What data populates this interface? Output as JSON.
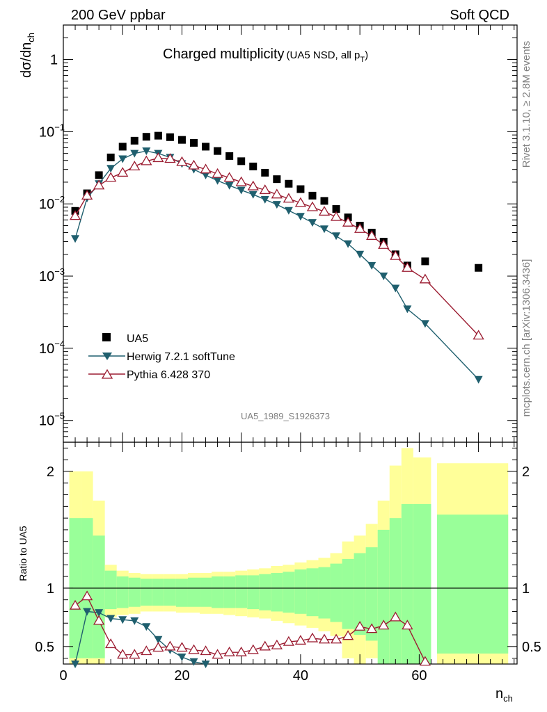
{
  "header": {
    "left": "200 GeV ppbar",
    "right": "Soft QCD"
  },
  "side_labels": {
    "top": "Rivet 3.1.10, ≥ 2.8M events",
    "bottom": "mcplots.cern.ch [arXiv:1306.3436]"
  },
  "watermark": "UA5_1989_S1926373",
  "colors": {
    "data": "#000000",
    "herwig": "#1f5f6e",
    "pythia": "#9b1b30",
    "band_outer": "#ffff99",
    "band_inner": "#99ff99"
  },
  "chart_data": [
    {
      "type": "scatter",
      "scale": "log",
      "title": "Charged multiplicity",
      "title_suffix": "(UA5 NSD, all p",
      "title_sub": "T",
      "title_close": ")",
      "ylabel_main": "dσ/dn",
      "ylabel_sub": "ch",
      "xlim": [
        0,
        76.5
      ],
      "ylim": [
        5e-06,
        3
      ],
      "yticks": [
        {
          "value": 1e-05,
          "label": "10",
          "exp": "−5"
        },
        {
          "value": 0.0001,
          "label": "10",
          "exp": "−4"
        },
        {
          "value": 0.001,
          "label": "10",
          "exp": "−3"
        },
        {
          "value": 0.01,
          "label": "10",
          "exp": "−2"
        },
        {
          "value": 0.1,
          "label": "10",
          "exp": "−1"
        },
        {
          "value": 1,
          "label": "1",
          "exp": ""
        }
      ],
      "legend": [
        "UA5",
        "Herwig 7.2.1 softTune",
        "Pythia 6.428 370"
      ],
      "series": [
        {
          "name": "UA5",
          "marker": "square",
          "x": [
            2,
            4,
            6,
            8,
            10,
            12,
            14,
            16,
            18,
            20,
            22,
            24,
            26,
            28,
            30,
            32,
            34,
            36,
            38,
            40,
            42,
            44,
            46,
            48,
            50,
            52,
            54,
            56,
            58,
            61,
            70
          ],
          "values": [
            0.008,
            0.014,
            0.025,
            0.044,
            0.062,
            0.075,
            0.085,
            0.088,
            0.084,
            0.077,
            0.07,
            0.062,
            0.054,
            0.046,
            0.039,
            0.033,
            0.027,
            0.022,
            0.019,
            0.016,
            0.013,
            0.011,
            0.0085,
            0.0065,
            0.005,
            0.004,
            0.003,
            0.002,
            0.0014,
            0.0016,
            0.0013
          ]
        },
        {
          "name": "Herwig 7.2.1 softTune",
          "marker": "triangle-down",
          "x": [
            2,
            4,
            6,
            8,
            10,
            12,
            14,
            16,
            18,
            20,
            22,
            24,
            26,
            28,
            30,
            32,
            34,
            36,
            38,
            40,
            42,
            44,
            46,
            48,
            50,
            52,
            54,
            56,
            58,
            61,
            70
          ],
          "values": [
            0.0033,
            0.012,
            0.019,
            0.031,
            0.042,
            0.05,
            0.054,
            0.05,
            0.044,
            0.036,
            0.03,
            0.025,
            0.021,
            0.018,
            0.0155,
            0.0135,
            0.0115,
            0.0098,
            0.0081,
            0.0067,
            0.0055,
            0.0045,
            0.0036,
            0.0028,
            0.002,
            0.0014,
            0.001,
            0.00068,
            0.00035,
            0.00022,
            3.7e-05
          ]
        },
        {
          "name": "Pythia 6.428 370",
          "marker": "triangle-up",
          "x": [
            2,
            4,
            6,
            8,
            10,
            12,
            14,
            16,
            18,
            20,
            22,
            24,
            26,
            28,
            30,
            32,
            34,
            36,
            38,
            40,
            42,
            44,
            46,
            48,
            50,
            52,
            54,
            56,
            58,
            61,
            70
          ],
          "values": [
            0.0068,
            0.013,
            0.018,
            0.023,
            0.027,
            0.033,
            0.039,
            0.043,
            0.042,
            0.038,
            0.034,
            0.03,
            0.026,
            0.023,
            0.02,
            0.0175,
            0.0155,
            0.0135,
            0.0118,
            0.0103,
            0.009,
            0.0078,
            0.0066,
            0.0055,
            0.0045,
            0.0036,
            0.0027,
            0.0019,
            0.0013,
            0.0009,
            0.00015
          ]
        }
      ]
    },
    {
      "type": "line",
      "ylabel": "Ratio to UA5",
      "xlabel_main": "n",
      "xlabel_sub": "ch",
      "xlim": [
        0,
        76.5
      ],
      "ylim": [
        0.35,
        2.25
      ],
      "xticks": [
        0,
        20,
        40,
        60
      ],
      "yticks": [
        0.5,
        1,
        2
      ],
      "ytick_labels": [
        "0.5",
        "1",
        "2"
      ],
      "bands": [
        {
          "x0": 1,
          "x1": 3,
          "outer": [
            0.3,
            2.0
          ],
          "inner": [
            0.4,
            1.6
          ]
        },
        {
          "x0": 3,
          "x1": 5,
          "outer": [
            0.3,
            2.0
          ],
          "inner": [
            0.4,
            1.6
          ]
        },
        {
          "x0": 5,
          "x1": 7,
          "outer": [
            0.3,
            1.75
          ],
          "inner": [
            0.4,
            1.45
          ]
        },
        {
          "x0": 7,
          "x1": 9,
          "outer": [
            0.75,
            1.2
          ],
          "inner": [
            0.82,
            1.15
          ]
        },
        {
          "x0": 9,
          "x1": 11,
          "outer": [
            0.77,
            1.15
          ],
          "inner": [
            0.83,
            1.1
          ]
        },
        {
          "x0": 11,
          "x1": 13,
          "outer": [
            0.78,
            1.13
          ],
          "inner": [
            0.84,
            1.09
          ]
        },
        {
          "x0": 13,
          "x1": 15,
          "outer": [
            0.8,
            1.12
          ],
          "inner": [
            0.85,
            1.08
          ]
        },
        {
          "x0": 15,
          "x1": 17,
          "outer": [
            0.8,
            1.12
          ],
          "inner": [
            0.85,
            1.08
          ]
        },
        {
          "x0": 17,
          "x1": 19,
          "outer": [
            0.8,
            1.12
          ],
          "inner": [
            0.85,
            1.08
          ]
        },
        {
          "x0": 19,
          "x1": 21,
          "outer": [
            0.79,
            1.12
          ],
          "inner": [
            0.84,
            1.08
          ]
        },
        {
          "x0": 21,
          "x1": 23,
          "outer": [
            0.79,
            1.13
          ],
          "inner": [
            0.84,
            1.09
          ]
        },
        {
          "x0": 23,
          "x1": 25,
          "outer": [
            0.78,
            1.13
          ],
          "inner": [
            0.84,
            1.09
          ]
        },
        {
          "x0": 25,
          "x1": 27,
          "outer": [
            0.78,
            1.14
          ],
          "inner": [
            0.83,
            1.1
          ]
        },
        {
          "x0": 27,
          "x1": 29,
          "outer": [
            0.77,
            1.14
          ],
          "inner": [
            0.83,
            1.1
          ]
        },
        {
          "x0": 29,
          "x1": 31,
          "outer": [
            0.76,
            1.15
          ],
          "inner": [
            0.83,
            1.11
          ]
        },
        {
          "x0": 31,
          "x1": 33,
          "outer": [
            0.75,
            1.16
          ],
          "inner": [
            0.82,
            1.11
          ]
        },
        {
          "x0": 33,
          "x1": 35,
          "outer": [
            0.74,
            1.17
          ],
          "inner": [
            0.81,
            1.12
          ]
        },
        {
          "x0": 35,
          "x1": 37,
          "outer": [
            0.72,
            1.19
          ],
          "inner": [
            0.8,
            1.13
          ]
        },
        {
          "x0": 37,
          "x1": 39,
          "outer": [
            0.7,
            1.2
          ],
          "inner": [
            0.79,
            1.14
          ]
        },
        {
          "x0": 39,
          "x1": 41,
          "outer": [
            0.68,
            1.22
          ],
          "inner": [
            0.78,
            1.16
          ]
        },
        {
          "x0": 41,
          "x1": 43,
          "outer": [
            0.66,
            1.24
          ],
          "inner": [
            0.76,
            1.17
          ]
        },
        {
          "x0": 43,
          "x1": 45,
          "outer": [
            0.63,
            1.26
          ],
          "inner": [
            0.74,
            1.18
          ]
        },
        {
          "x0": 45,
          "x1": 47,
          "outer": [
            0.59,
            1.3
          ],
          "inner": [
            0.71,
            1.21
          ]
        },
        {
          "x0": 47,
          "x1": 49,
          "outer": [
            0.4,
            1.4
          ],
          "inner": [
            0.65,
            1.25
          ]
        },
        {
          "x0": 49,
          "x1": 51,
          "outer": [
            0.35,
            1.45
          ],
          "inner": [
            0.6,
            1.3
          ]
        },
        {
          "x0": 51,
          "x1": 53,
          "outer": [
            0.4,
            1.55
          ],
          "inner": [
            0.55,
            1.35
          ]
        },
        {
          "x0": 53,
          "x1": 55,
          "outer": [
            0.3,
            1.75
          ],
          "inner": [
            0.35,
            1.5
          ]
        },
        {
          "x0": 55,
          "x1": 57,
          "outer": [
            0.3,
            2.05
          ],
          "inner": [
            0.35,
            1.6
          ]
        },
        {
          "x0": 57,
          "x1": 59,
          "outer": [
            0.3,
            2.2
          ],
          "inner": [
            0.35,
            1.72
          ]
        },
        {
          "x0": 59,
          "x1": 62,
          "outer": [
            0.3,
            2.12
          ],
          "inner": [
            0.35,
            1.72
          ]
        },
        {
          "x0": 63,
          "x1": 75,
          "outer": [
            0.3,
            2.07
          ],
          "inner": [
            0.44,
            1.63
          ]
        }
      ],
      "series": [
        {
          "name": "Herwig 7.2.1 softTune",
          "marker": "triangle-down",
          "x": [
            2,
            4,
            6,
            8,
            10,
            12,
            14,
            16,
            18,
            20,
            22,
            24
          ],
          "values": [
            0.35,
            0.8,
            0.79,
            0.74,
            0.73,
            0.72,
            0.67,
            0.56,
            0.47,
            0.41,
            0.37,
            0.35
          ]
        },
        {
          "name": "Pythia 6.428 370",
          "marker": "triangle-up",
          "x": [
            2,
            4,
            6,
            8,
            10,
            12,
            14,
            16,
            18,
            20,
            22,
            24,
            26,
            28,
            30,
            32,
            34,
            36,
            38,
            40,
            42,
            44,
            46,
            48,
            50,
            52,
            54,
            56,
            58,
            61
          ],
          "values": [
            0.85,
            0.93,
            0.72,
            0.52,
            0.43,
            0.43,
            0.46,
            0.49,
            0.5,
            0.49,
            0.47,
            0.46,
            0.43,
            0.45,
            0.45,
            0.47,
            0.5,
            0.51,
            0.54,
            0.55,
            0.57,
            0.56,
            0.56,
            0.59,
            0.67,
            0.65,
            0.68,
            0.75,
            0.68,
            0.37
          ]
        }
      ]
    }
  ]
}
